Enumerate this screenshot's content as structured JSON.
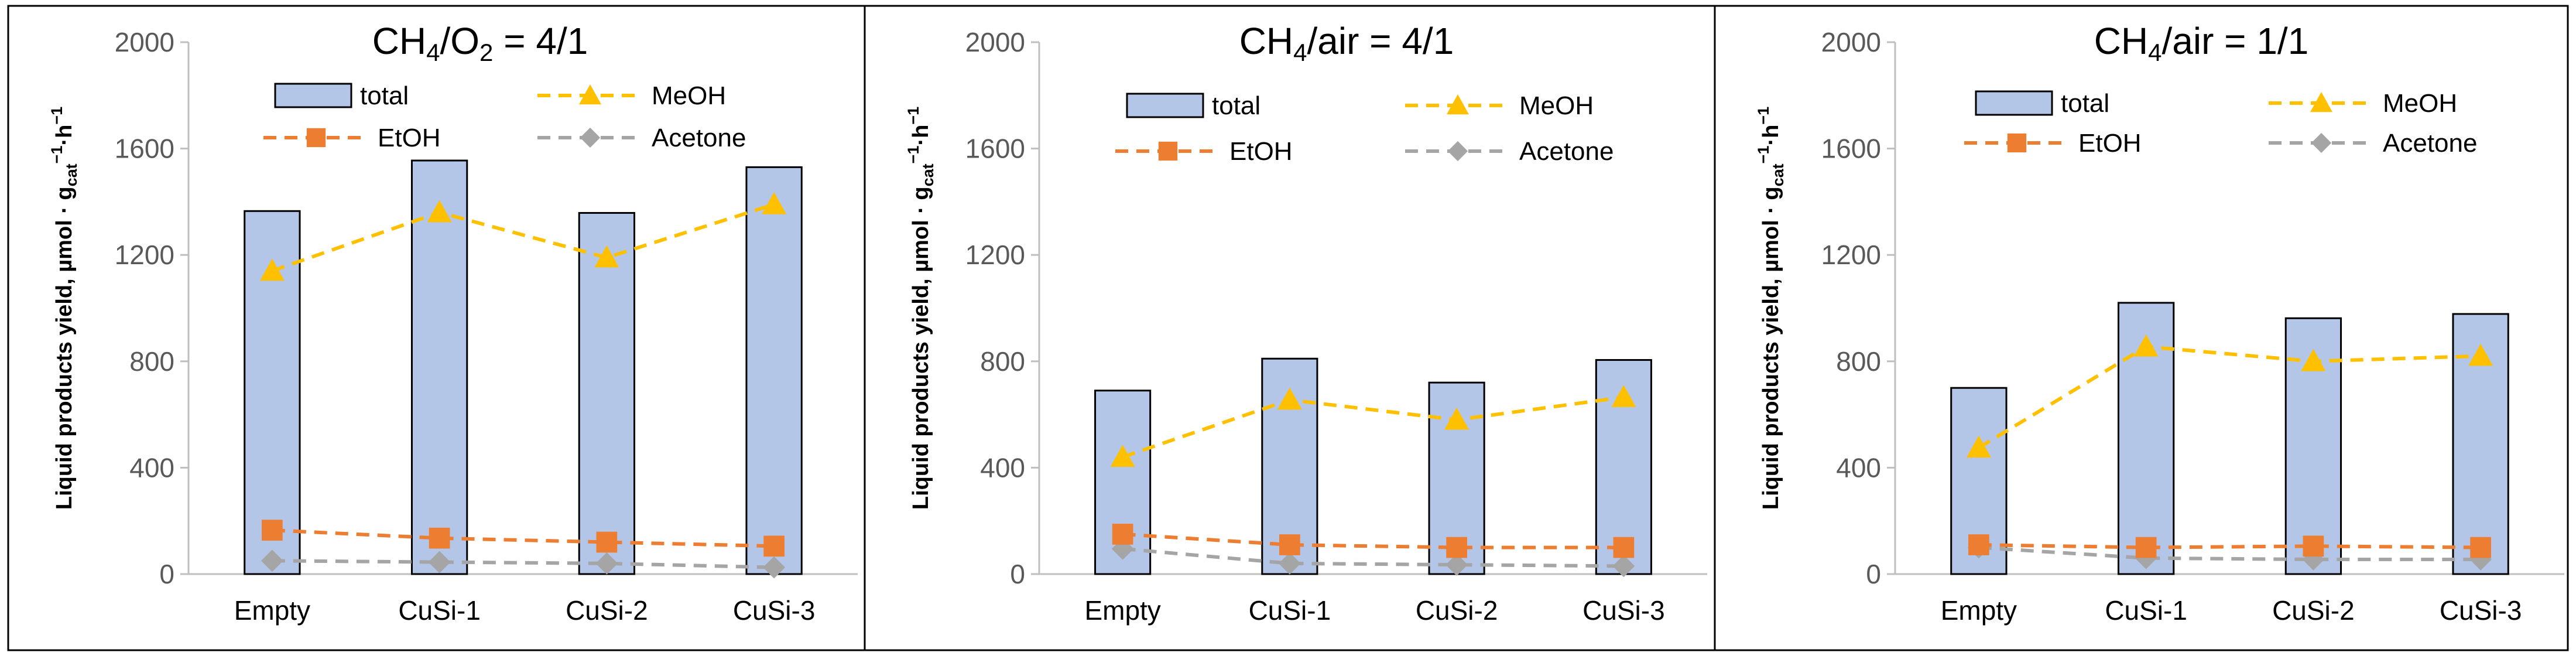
{
  "figure": {
    "layout": "1x3 panels"
  },
  "chart_data": [
    {
      "type": "bar",
      "title": {
        "prefix": "CH",
        "sub1": "4",
        "mid": "/O",
        "sub2": "2",
        "suffix": " = 4/1"
      },
      "xlabel": "",
      "ylabel": {
        "main": "Liquid products yield, µmol · g",
        "sub": "cat",
        "sup1": "−1",
        "dot": "·h",
        "sup2": "−1"
      },
      "ylim": [
        0,
        2000
      ],
      "yticks": [
        0,
        400,
        800,
        1200,
        1600,
        2000
      ],
      "categories": [
        "Empty",
        "CuSi-1",
        "CuSi-2",
        "CuSi-3"
      ],
      "series": [
        {
          "name": "total",
          "kind": "bar",
          "values": [
            1365,
            1555,
            1358,
            1530
          ]
        },
        {
          "name": "MeOH",
          "kind": "line",
          "marker": "triangle",
          "values": [
            1140,
            1360,
            1190,
            1390
          ]
        },
        {
          "name": "EtOH",
          "kind": "line",
          "marker": "square",
          "values": [
            165,
            135,
            120,
            105
          ]
        },
        {
          "name": "Acetone",
          "kind": "line",
          "marker": "diamond",
          "values": [
            50,
            45,
            40,
            25
          ]
        }
      ],
      "legend_position": "top"
    },
    {
      "type": "bar",
      "title": {
        "prefix": "CH",
        "sub1": "4",
        "mid": "/air",
        "sub2": "",
        "suffix": " = 4/1"
      },
      "xlabel": "",
      "ylabel": {
        "main": "Liquid products yield, µmol · g",
        "sub": "cat",
        "sup1": "−1",
        "dot": "·h",
        "sup2": "−1"
      },
      "ylim": [
        0,
        2000
      ],
      "yticks": [
        0,
        400,
        800,
        1200,
        1600,
        2000
      ],
      "categories": [
        "Empty",
        "CuSi-1",
        "CuSi-2",
        "CuSi-3"
      ],
      "series": [
        {
          "name": "total",
          "kind": "bar",
          "values": [
            690,
            810,
            720,
            805
          ]
        },
        {
          "name": "MeOH",
          "kind": "line",
          "marker": "triangle",
          "values": [
            440,
            655,
            580,
            665
          ]
        },
        {
          "name": "EtOH",
          "kind": "line",
          "marker": "square",
          "values": [
            150,
            110,
            100,
            100
          ]
        },
        {
          "name": "Acetone",
          "kind": "line",
          "marker": "diamond",
          "values": [
            95,
            40,
            35,
            30
          ]
        }
      ],
      "legend_position": "top"
    },
    {
      "type": "bar",
      "title": {
        "prefix": "CH",
        "sub1": "4",
        "mid": "/air",
        "sub2": "",
        "suffix": " = 1/1"
      },
      "xlabel": "",
      "ylabel": {
        "main": "Liquid products yield, µmol · g",
        "sub": "cat",
        "sup1": "−1",
        "dot": "·h",
        "sup2": "−1"
      },
      "ylim": [
        0,
        2000
      ],
      "yticks": [
        0,
        400,
        800,
        1200,
        1600,
        2000
      ],
      "categories": [
        "Empty",
        "CuSi-1",
        "CuSi-2",
        "CuSi-3"
      ],
      "series": [
        {
          "name": "total",
          "kind": "bar",
          "values": [
            700,
            1020,
            962,
            978
          ]
        },
        {
          "name": "MeOH",
          "kind": "line",
          "marker": "triangle",
          "values": [
            475,
            855,
            800,
            820
          ]
        },
        {
          "name": "EtOH",
          "kind": "line",
          "marker": "square",
          "values": [
            110,
            100,
            105,
            100
          ]
        },
        {
          "name": "Acetone",
          "kind": "line",
          "marker": "diamond",
          "values": [
            100,
            60,
            55,
            55
          ]
        }
      ],
      "legend_position": "top"
    }
  ],
  "colors": {
    "bar_fill": "#b4c6e7",
    "bar_stroke": "#000000",
    "meoh": "#ffc000",
    "etoh": "#ed7d31",
    "acetone": "#a5a5a5",
    "axis": "#bfbfbf",
    "tick_text": "#595959",
    "frame": "#000000"
  }
}
